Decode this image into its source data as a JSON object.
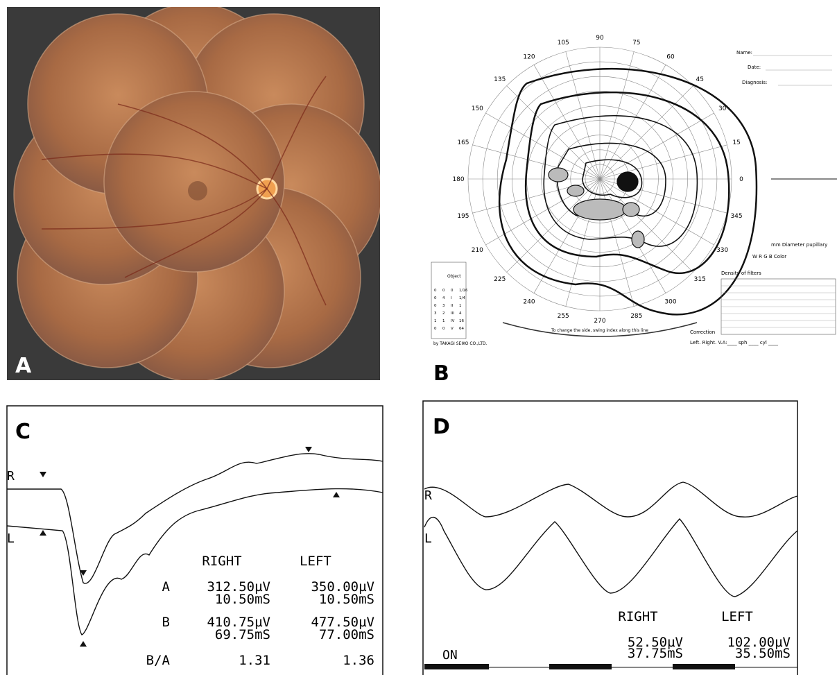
{
  "panels": [
    {
      "label": "A"
    },
    {
      "label": "B",
      "form": {
        "name": "Name:",
        "date": "Date:",
        "diagnosis": "Diagnosis:",
        "pupil": "mm   Diameter pupillary",
        "color": "W R G B     Color",
        "filters": "Density of filters",
        "correction": "Correction",
        "side": "Left.  Right.  V.A:____ sph ____ cyl ____",
        "swing": "To change the side, swing index along this line",
        "maker": "by TAKAGI SEIKO CO.,LTD.",
        "object": "Object"
      },
      "angles": [
        "0",
        "15",
        "30",
        "45",
        "60",
        "75",
        "90",
        "105",
        "120",
        "135",
        "150",
        "165",
        "180",
        "195",
        "210",
        "225",
        "240",
        "255",
        "270",
        "285",
        "300",
        "315",
        "330",
        "345"
      ],
      "objects": [
        [
          "0",
          "0",
          "0",
          "1/16"
        ],
        [
          "0",
          "4",
          "I",
          "1/4"
        ],
        [
          "0",
          "3",
          "II",
          "1"
        ],
        [
          "3",
          "2",
          "III",
          "4"
        ],
        [
          "1",
          "1",
          "IV",
          "16"
        ],
        [
          "0",
          "0",
          "V",
          "64"
        ]
      ]
    },
    {
      "label": "C",
      "traces": [
        "R",
        "L"
      ],
      "header": [
        "RIGHT",
        "LEFT"
      ],
      "rows": [
        {
          "label": "A",
          "right": [
            "312.50µV",
            "10.50mS"
          ],
          "left": [
            "350.00µV",
            "10.50mS"
          ]
        },
        {
          "label": "B",
          "right": [
            "410.75µV",
            "69.75mS"
          ],
          "left": [
            "477.50µV",
            "77.00mS"
          ]
        },
        {
          "label": "B/A",
          "right": [
            "1.31"
          ],
          "left": [
            "1.36"
          ]
        }
      ]
    },
    {
      "label": "D",
      "traces": [
        "R",
        "L"
      ],
      "header": [
        "RIGHT",
        "LEFT"
      ],
      "right": [
        "52.50µV",
        "37.75mS"
      ],
      "left": [
        "102.00µV",
        "35.50mS"
      ],
      "stimulus": "ON"
    }
  ]
}
